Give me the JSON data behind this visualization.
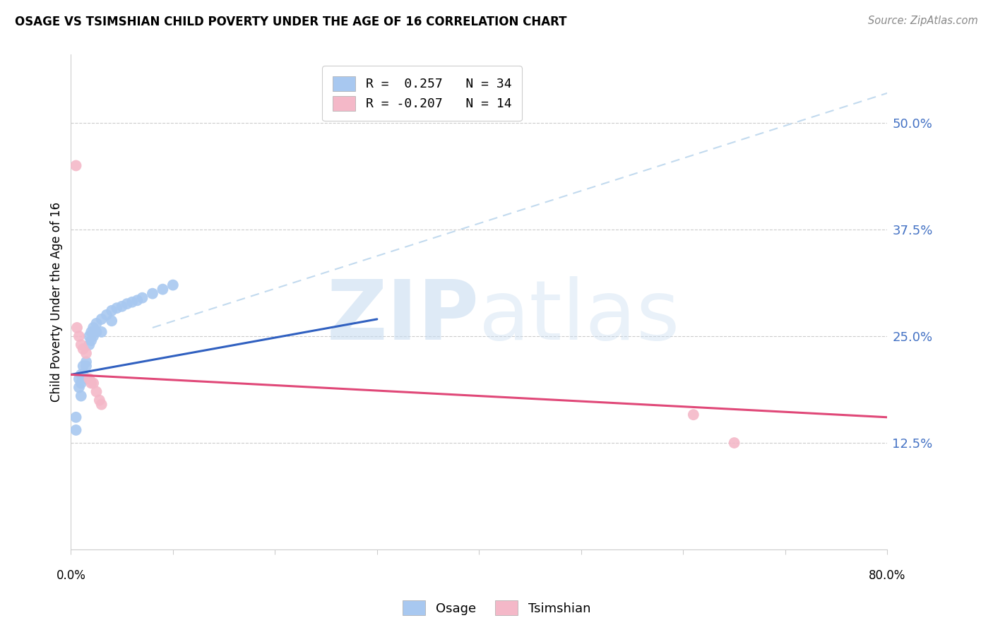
{
  "title": "OSAGE VS TSIMSHIAN CHILD POVERTY UNDER THE AGE OF 16 CORRELATION CHART",
  "source": "Source: ZipAtlas.com",
  "ylabel": "Child Poverty Under the Age of 16",
  "ytick_labels": [
    "50.0%",
    "37.5%",
    "25.0%",
    "12.5%"
  ],
  "ytick_values": [
    0.5,
    0.375,
    0.25,
    0.125
  ],
  "xlim": [
    0.0,
    0.8
  ],
  "ylim": [
    0.0,
    0.58
  ],
  "watermark_zip": "ZIP",
  "watermark_atlas": "atlas",
  "osage_color": "#A8C8F0",
  "tsimshian_color": "#F4B8C8",
  "osage_line_color": "#3060C0",
  "tsimshian_line_color": "#E04878",
  "dashed_line_color": "#B8D4EC",
  "osage_x": [
    0.005,
    0.005,
    0.008,
    0.008,
    0.01,
    0.01,
    0.01,
    0.012,
    0.012,
    0.015,
    0.015,
    0.015,
    0.018,
    0.018,
    0.02,
    0.02,
    0.022,
    0.022,
    0.025,
    0.025,
    0.03,
    0.03,
    0.035,
    0.04,
    0.04,
    0.045,
    0.05,
    0.055,
    0.06,
    0.065,
    0.07,
    0.08,
    0.09,
    0.1
  ],
  "osage_y": [
    0.155,
    0.14,
    0.2,
    0.19,
    0.205,
    0.195,
    0.18,
    0.215,
    0.205,
    0.22,
    0.215,
    0.2,
    0.25,
    0.24,
    0.255,
    0.245,
    0.26,
    0.25,
    0.265,
    0.255,
    0.27,
    0.255,
    0.275,
    0.28,
    0.268,
    0.283,
    0.285,
    0.288,
    0.29,
    0.292,
    0.295,
    0.3,
    0.305,
    0.31
  ],
  "tsimshian_x": [
    0.005,
    0.006,
    0.008,
    0.01,
    0.012,
    0.015,
    0.018,
    0.02,
    0.022,
    0.025,
    0.028,
    0.03,
    0.61,
    0.65
  ],
  "tsimshian_y": [
    0.45,
    0.26,
    0.25,
    0.24,
    0.235,
    0.23,
    0.2,
    0.195,
    0.195,
    0.185,
    0.175,
    0.17,
    0.158,
    0.125
  ],
  "osage_R": 0.257,
  "osage_N": 34,
  "tsimshian_R": -0.207,
  "tsimshian_N": 14,
  "background_color": "#FFFFFF",
  "tick_color": "#4472C4",
  "title_color": "#000000",
  "source_color": "#888888"
}
